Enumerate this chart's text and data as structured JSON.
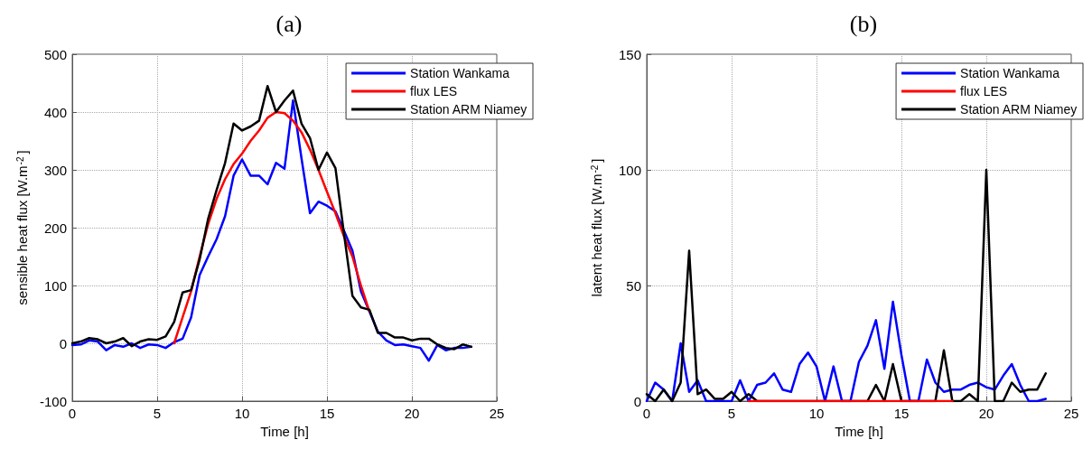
{
  "chart_data": [
    {
      "type": "line",
      "title": "(a)",
      "xlabel": "Time [h]",
      "ylabel": "sensible heat flux [W.m$^{-2}$]",
      "xlim": [
        0,
        25
      ],
      "xticks": [
        0,
        5,
        10,
        15,
        20,
        25
      ],
      "ylim": [
        -100,
        500
      ],
      "yticks": [
        -100,
        0,
        100,
        200,
        300,
        400,
        500
      ],
      "grid": true,
      "legend": "top right",
      "marker": "none",
      "line_style": "solid",
      "series": [
        {
          "name": "Station Wankama",
          "color": "#0000ff",
          "x": [
            0,
            0.5,
            1,
            1.5,
            2,
            2.5,
            3,
            3.5,
            4,
            4.5,
            5,
            5.5,
            6,
            6.5,
            7,
            7.5,
            8,
            8.5,
            9,
            9.5,
            10,
            10.5,
            11,
            11.5,
            12,
            12.5,
            13,
            13.5,
            14,
            14.5,
            15,
            15.5,
            16,
            16.5,
            17,
            17.5,
            18,
            18.5,
            19,
            19.5,
            20,
            20.5,
            21,
            21.5,
            22,
            22.5,
            23,
            23.5
          ],
          "values": [
            -3,
            -2,
            5,
            3,
            -12,
            -3,
            -6,
            0,
            -8,
            -2,
            -3,
            -8,
            2,
            8,
            45,
            118,
            150,
            180,
            220,
            290,
            318,
            290,
            290,
            275,
            312,
            302,
            420,
            320,
            225,
            245,
            238,
            228,
            195,
            160,
            90,
            55,
            20,
            5,
            -3,
            -2,
            -5,
            -8,
            -30,
            -3,
            -12,
            -8,
            -8,
            -6
          ]
        },
        {
          "name": "flux LES",
          "color": "#ff0000",
          "x": [
            6,
            6.5,
            7,
            7.5,
            8,
            8.5,
            9,
            9.5,
            10,
            10.5,
            11,
            11.5,
            12,
            12.5,
            13,
            13.5,
            14,
            14.5,
            15,
            15.5,
            16,
            16.5,
            17,
            17.5
          ],
          "values": [
            0,
            45,
            90,
            150,
            206,
            250,
            284,
            310,
            328,
            350,
            368,
            390,
            400,
            398,
            385,
            365,
            335,
            300,
            262,
            225,
            185,
            150,
            100,
            55
          ]
        },
        {
          "name": "Station ARM Niamey",
          "color": "#000000",
          "x": [
            0,
            0.5,
            1,
            1.5,
            2,
            2.5,
            3,
            3.5,
            4,
            4.5,
            5,
            5.5,
            6,
            6.5,
            7,
            7.5,
            8,
            8.5,
            9,
            9.5,
            10,
            10.5,
            11,
            11.5,
            12,
            12.5,
            13,
            13.5,
            14,
            14.5,
            15,
            15.5,
            16,
            16.5,
            17,
            17.5,
            18,
            18.5,
            19,
            19.5,
            20,
            20.5,
            21,
            21.5,
            22,
            22.5,
            23,
            23.5
          ],
          "values": [
            0,
            3,
            9,
            7,
            0,
            3,
            9,
            -5,
            3,
            7,
            6,
            12,
            37,
            88,
            92,
            145,
            215,
            265,
            312,
            380,
            368,
            375,
            385,
            445,
            400,
            420,
            437,
            380,
            355,
            300,
            330,
            303,
            190,
            82,
            62,
            58,
            18,
            18,
            10,
            10,
            5,
            8,
            8,
            -2,
            -8,
            -10,
            -2,
            -6
          ]
        }
      ]
    },
    {
      "type": "line",
      "title": "(b)",
      "xlabel": "Time [h]",
      "ylabel": "latent heat flux [W.m$^{-2}$]",
      "xlim": [
        0,
        25
      ],
      "xticks": [
        0,
        5,
        10,
        15,
        20,
        25
      ],
      "ylim": [
        0,
        150
      ],
      "yticks": [
        0,
        50,
        100,
        150
      ],
      "grid": true,
      "legend": "top right",
      "marker": "none",
      "line_style": "solid",
      "series": [
        {
          "name": "Station Wankama",
          "color": "#0000ff",
          "x": [
            0,
            0.5,
            1,
            1.5,
            2,
            2.5,
            3,
            3.5,
            4,
            4.5,
            5,
            5.5,
            6,
            6.5,
            7,
            7.5,
            8,
            8.5,
            9,
            9.5,
            10,
            10.5,
            11,
            11.5,
            12,
            12.5,
            13,
            13.5,
            14,
            14.5,
            15,
            15.5,
            16,
            16.5,
            17,
            17.5,
            18,
            18.5,
            19,
            19.5,
            20,
            20.5,
            21,
            21.5,
            22,
            22.5,
            23,
            23.5
          ],
          "values": [
            0,
            8,
            5,
            0,
            25,
            4,
            9,
            0,
            0,
            0,
            0,
            9,
            0,
            7,
            8,
            12,
            5,
            4,
            16,
            21,
            15,
            0,
            15,
            0,
            0,
            17,
            24,
            35,
            14,
            43,
            20,
            0,
            0,
            18,
            8,
            4,
            5,
            5,
            7,
            8,
            6,
            5,
            11,
            16,
            7,
            0,
            0,
            1
          ]
        },
        {
          "name": "flux LES",
          "color": "#ff0000",
          "x": [
            6,
            6.5,
            7,
            7.5,
            8,
            8.5,
            9,
            9.5,
            10,
            10.5,
            11,
            11.5,
            12,
            12.5,
            13,
            13.5,
            14,
            14.5,
            15,
            15.5,
            16,
            16.5,
            17,
            17.5,
            18
          ],
          "values": [
            0,
            0,
            0,
            0,
            0,
            0,
            0,
            0,
            0,
            0,
            0,
            0,
            0,
            0,
            0,
            0,
            0,
            0,
            0,
            0,
            0,
            0,
            0,
            0,
            0
          ]
        },
        {
          "name": "Station ARM Niamey",
          "color": "#000000",
          "x": [
            0,
            0.5,
            1,
            1.5,
            2,
            2.5,
            3,
            3.5,
            4,
            4.5,
            5,
            5.5,
            6,
            6.5,
            7,
            7.5,
            8,
            8.5,
            9,
            9.5,
            10,
            10.5,
            11,
            11.5,
            12,
            12.5,
            13,
            13.5,
            14,
            14.5,
            15,
            15.5,
            16,
            16.5,
            17,
            17.5,
            18,
            18.5,
            19,
            19.5,
            20,
            20.5,
            21,
            21.5,
            22,
            22.5,
            23,
            23.5
          ],
          "values": [
            3,
            0,
            5,
            0,
            8,
            65,
            3,
            5,
            1,
            1,
            4,
            0,
            3,
            0,
            0,
            0,
            0,
            0,
            0,
            0,
            0,
            0,
            0,
            0,
            0,
            0,
            0,
            7,
            0,
            16,
            0,
            0,
            0,
            0,
            0,
            22,
            0,
            0,
            3,
            0,
            100,
            0,
            0,
            8,
            4,
            5,
            5,
            12
          ]
        }
      ]
    }
  ]
}
